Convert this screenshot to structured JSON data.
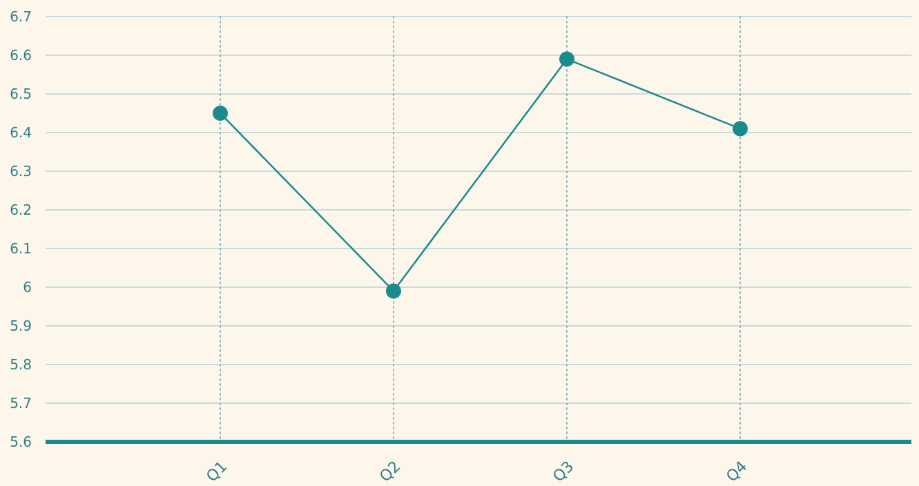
{
  "chart_data": {
    "type": "line",
    "categories": [
      "Q1",
      "Q2",
      "Q3",
      "Q4"
    ],
    "series": [
      {
        "values": [
          6.45,
          5.99,
          6.59,
          6.41
        ]
      }
    ],
    "ylim": [
      5.6,
      6.7
    ],
    "yticks": [
      "5.6",
      "5.7",
      "5.8",
      "5.9",
      "6",
      "6.1",
      "6.2",
      "6.3",
      "6.4",
      "6.5",
      "6.6",
      "6.7"
    ],
    "grid": true,
    "colors": {
      "background": "#fdf6ea",
      "line": "#1a8a8c",
      "marker": "#1a8a8c",
      "gridline": "#a8cdd6",
      "vertical_gridline": "#8fb3bd",
      "baseline": "#1a8a8c",
      "tick_label": "#2f7f8a"
    }
  }
}
